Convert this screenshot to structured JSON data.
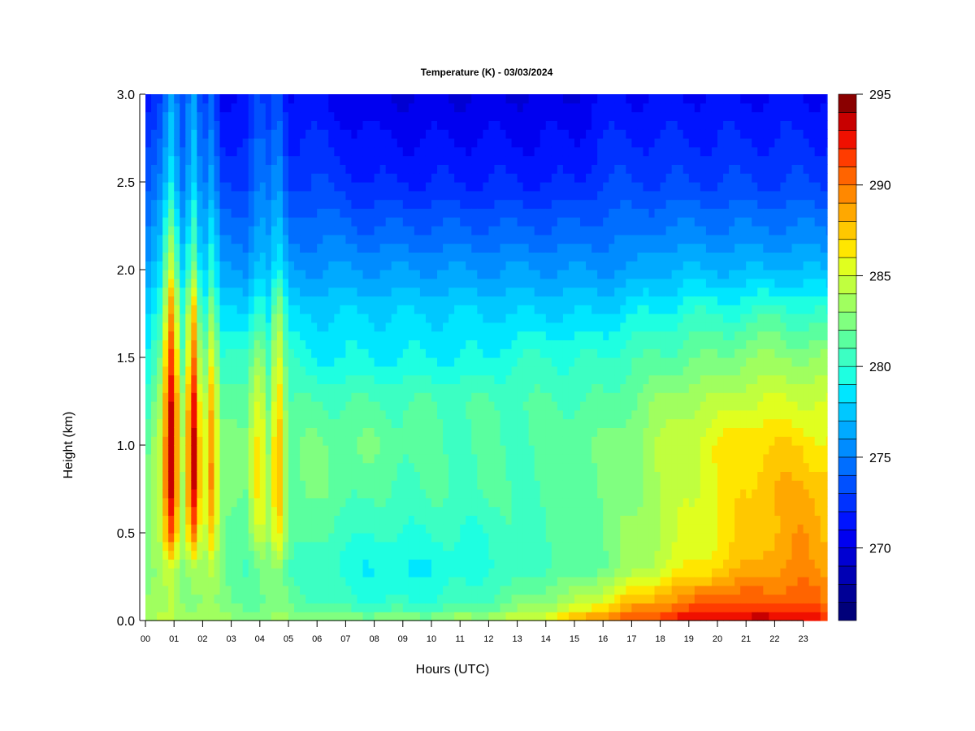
{
  "chart_data": {
    "type": "heatmap",
    "title": "Temperature (K) - 03/03/2024",
    "xlabel": "Hours (UTC)",
    "ylabel": "Height (km)",
    "xlim": [
      0,
      23.84
    ],
    "ylim": [
      0,
      3.0
    ],
    "x_ticks": [
      "00",
      "01",
      "02",
      "03",
      "04",
      "05",
      "06",
      "07",
      "08",
      "09",
      "10",
      "11",
      "12",
      "13",
      "14",
      "15",
      "16",
      "17",
      "18",
      "19",
      "20",
      "21",
      "22",
      "23"
    ],
    "y_ticks": [
      "0.0",
      "0.5",
      "1.0",
      "1.5",
      "2.0",
      "2.5",
      "3.0"
    ],
    "colorbar": {
      "range": [
        266,
        295
      ],
      "tick_labels": [
        "270",
        "275",
        "280",
        "285",
        "290",
        "295"
      ],
      "level_step": 1,
      "colors": [
        "#00007a",
        "#000096",
        "#0000b4",
        "#0000d2",
        "#0000f0",
        "#0014ff",
        "#0032ff",
        "#0050ff",
        "#006eff",
        "#008cff",
        "#00aaff",
        "#00c8ff",
        "#00e6ff",
        "#1effe1",
        "#3cffc3",
        "#5aff9f",
        "#80ff80",
        "#a0ff5f",
        "#c0ff3f",
        "#e0ff1f",
        "#ffe600",
        "#ffc800",
        "#ffa800",
        "#ff8800",
        "#ff6400",
        "#ff3c00",
        "#f01000",
        "#c80000",
        "#8a0000"
      ]
    },
    "heights_km": [
      0,
      0.1,
      0.3,
      0.5,
      0.75,
      1.0,
      1.25,
      1.5,
      1.75,
      2.0,
      2.5,
      3.0
    ],
    "hours": [
      0,
      0.5,
      0.9,
      1.3,
      1.7,
      2.0,
      2.3,
      2.7,
      3.5,
      4.0,
      4.3,
      4.65,
      5.0,
      6,
      8,
      10,
      12,
      13,
      14,
      15,
      16,
      17,
      18,
      19,
      20,
      21,
      22,
      23,
      23.84
    ],
    "temperature_K": [
      [
        284,
        283,
        282,
        282,
        282,
        281,
        280,
        279,
        278,
        276,
        273,
        271
      ],
      [
        284,
        283,
        283,
        284,
        285,
        285,
        284,
        282,
        280,
        278,
        275,
        273
      ],
      [
        284,
        284,
        285,
        291,
        294,
        294,
        293,
        291,
        289,
        285,
        279,
        277
      ],
      [
        284,
        283,
        283,
        284,
        284,
        284,
        283,
        281,
        280,
        278,
        275,
        273
      ],
      [
        284,
        283,
        284,
        290,
        293,
        293,
        292,
        290,
        288,
        283,
        278,
        276
      ],
      [
        284,
        283,
        283,
        283,
        284,
        284,
        283,
        281,
        279,
        277,
        274,
        272
      ],
      [
        284,
        283,
        284,
        287,
        289,
        289,
        288,
        286,
        283,
        280,
        276,
        274
      ],
      [
        283,
        282,
        282,
        282,
        283,
        283,
        282,
        280,
        278,
        276,
        273,
        271
      ],
      [
        283,
        282,
        281,
        282,
        282,
        282,
        281,
        280,
        278,
        276,
        273,
        271
      ],
      [
        283,
        282,
        282,
        285,
        287,
        287,
        286,
        284,
        281,
        278,
        275,
        273
      ],
      [
        283,
        282,
        282,
        283,
        283,
        283,
        282,
        281,
        279,
        277,
        274,
        272
      ],
      [
        283,
        282,
        283,
        287,
        289,
        289,
        288,
        286,
        284,
        279,
        276,
        274
      ],
      [
        283,
        282,
        281,
        282,
        282,
        282,
        281,
        280,
        278,
        276,
        273,
        271
      ],
      [
        283,
        281,
        280,
        281,
        282,
        282,
        281,
        279,
        278,
        276,
        273,
        271
      ],
      [
        283,
        280,
        279,
        280,
        281,
        282,
        281,
        279,
        278,
        276,
        272,
        270
      ],
      [
        283,
        280,
        279,
        280,
        281,
        281,
        281,
        279,
        278,
        276,
        272,
        270
      ],
      [
        284,
        281,
        280,
        280,
        281,
        281,
        281,
        279,
        278,
        276,
        272,
        270
      ],
      [
        285,
        282,
        280,
        281,
        281,
        281,
        281,
        280,
        278,
        276,
        272,
        270
      ],
      [
        286,
        283,
        281,
        281,
        281,
        281,
        281,
        280,
        278,
        276,
        272,
        270
      ],
      [
        288,
        284,
        281,
        281,
        282,
        282,
        281,
        280,
        278,
        276,
        272,
        270
      ],
      [
        290,
        286,
        282,
        282,
        282,
        282,
        281,
        280,
        278,
        276,
        273,
        271
      ],
      [
        291,
        288,
        283,
        283,
        283,
        283,
        282,
        281,
        279,
        276,
        273,
        271
      ],
      [
        292,
        289,
        285,
        284,
        284,
        284,
        283,
        281,
        279,
        277,
        273,
        271
      ],
      [
        293,
        290,
        286,
        285,
        285,
        285,
        284,
        282,
        280,
        277,
        273,
        271
      ],
      [
        293,
        291,
        287,
        286,
        286,
        286,
        284,
        282,
        280,
        277,
        273,
        271
      ],
      [
        293,
        291,
        288,
        287,
        287,
        287,
        285,
        283,
        280,
        277,
        273,
        271
      ],
      [
        294,
        291,
        289,
        288,
        288,
        287,
        285,
        283,
        281,
        277,
        273,
        271
      ],
      [
        293,
        291,
        289,
        289,
        288,
        287,
        285,
        283,
        280,
        277,
        273,
        271
      ],
      [
        292,
        290,
        289,
        288,
        288,
        286,
        285,
        283,
        280,
        277,
        273,
        271
      ]
    ]
  }
}
